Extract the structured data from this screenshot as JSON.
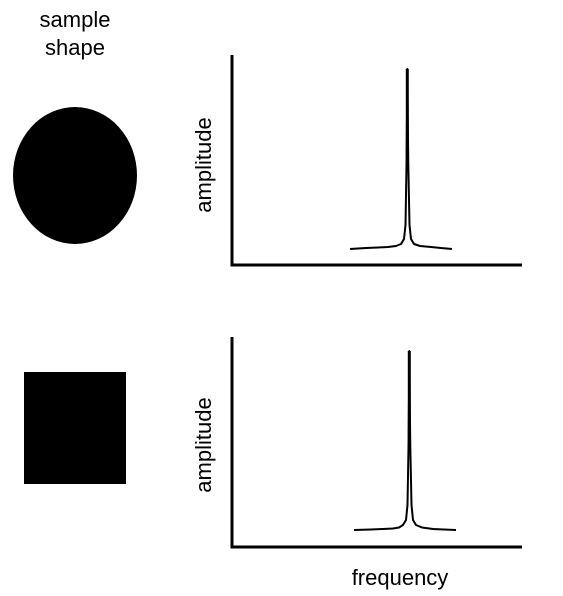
{
  "header": {
    "line1": "sample",
    "line2": "shape"
  },
  "rows": [
    {
      "shape": "circle",
      "ylabel": "amplitude",
      "peak": "single sharp peak"
    },
    {
      "shape": "square",
      "ylabel": "amplitude",
      "peak": "single sharp peak"
    }
  ],
  "xlabel": "frequency",
  "colors": {
    "ink": "#000000",
    "background": "#ffffff"
  }
}
